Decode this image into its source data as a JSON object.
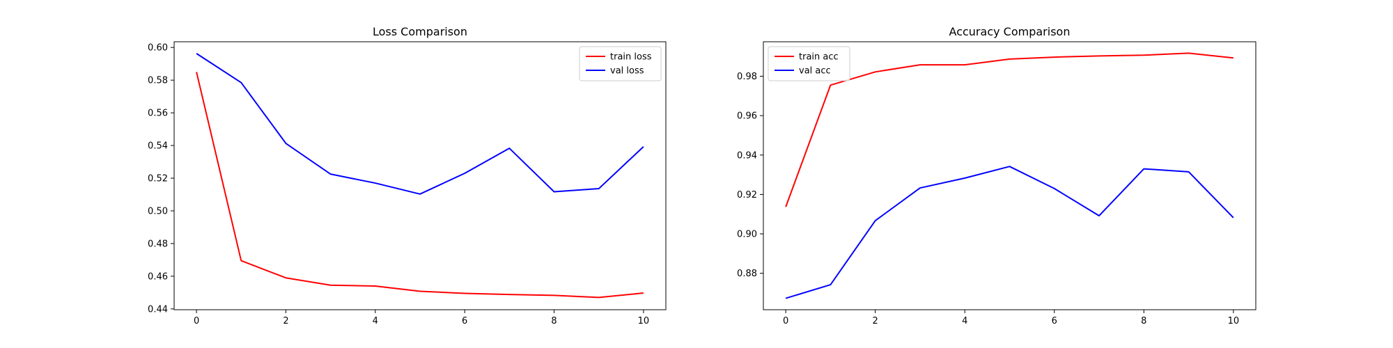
{
  "chart_data": [
    {
      "type": "line",
      "title": "Loss Comparison",
      "xlabel": "",
      "ylabel": "",
      "x": [
        0,
        1,
        2,
        3,
        4,
        5,
        6,
        7,
        8,
        9,
        10
      ],
      "xlim": [
        -0.5,
        10.5
      ],
      "ylim": [
        0.4395,
        0.6035
      ],
      "xticks": [
        0,
        2,
        4,
        6,
        8,
        10
      ],
      "yticks": [
        0.44,
        0.46,
        0.48,
        0.5,
        0.52,
        0.54,
        0.56,
        0.58,
        0.6
      ],
      "ytick_decimals": 2,
      "legend_position": "upper right",
      "grid": false,
      "series": [
        {
          "name": "train loss",
          "color": "#ff0000",
          "values": [
            0.585,
            0.4695,
            0.459,
            0.4545,
            0.454,
            0.4508,
            0.4495,
            0.4488,
            0.4483,
            0.447,
            0.4497
          ]
        },
        {
          "name": "val loss",
          "color": "#0000ff",
          "values": [
            0.5963,
            0.5785,
            0.5413,
            0.5225,
            0.517,
            0.5103,
            0.523,
            0.5383,
            0.5117,
            0.5136,
            0.5393
          ]
        }
      ]
    },
    {
      "type": "line",
      "title": "Accuracy Comparison",
      "xlabel": "",
      "ylabel": "",
      "x": [
        0,
        1,
        2,
        3,
        4,
        5,
        6,
        7,
        8,
        9,
        10
      ],
      "xlim": [
        -0.5,
        10.5
      ],
      "ylim": [
        0.8615,
        0.9975
      ],
      "xticks": [
        0,
        2,
        4,
        6,
        8,
        10
      ],
      "yticks": [
        0.88,
        0.9,
        0.92,
        0.94,
        0.96,
        0.98
      ],
      "ytick_decimals": 2,
      "legend_position": "upper left",
      "grid": false,
      "series": [
        {
          "name": "train acc",
          "color": "#ff0000",
          "values": [
            0.9137,
            0.9755,
            0.9822,
            0.9858,
            0.9858,
            0.9887,
            0.9897,
            0.9903,
            0.9907,
            0.9917,
            0.9893
          ]
        },
        {
          "name": "val acc",
          "color": "#0000ff",
          "values": [
            0.8673,
            0.8742,
            0.9067,
            0.9233,
            0.9283,
            0.9342,
            0.923,
            0.9092,
            0.933,
            0.9315,
            0.9082
          ]
        }
      ]
    }
  ]
}
